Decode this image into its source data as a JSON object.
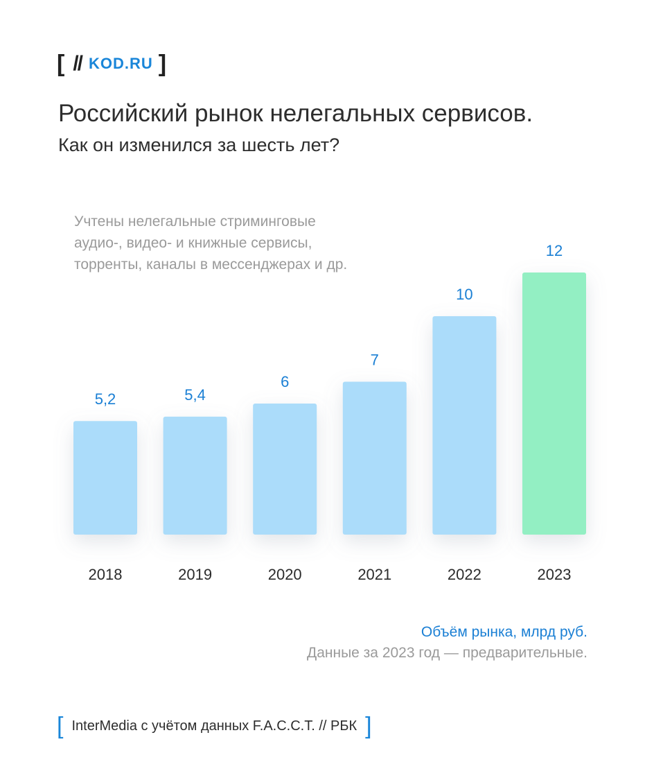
{
  "logo": {
    "bracket_left": "[",
    "slashes": "//",
    "brand": "KOD.RU",
    "bracket_right": "]"
  },
  "header": {
    "title": "Российский рынок нелегальных сервисов.",
    "subtitle": "Как он изменился за шесть лет?"
  },
  "note": {
    "lines": [
      "Учтены нелегальные стриминговые",
      "аудио-, видео- и книжные сервисы,",
      "торренты, каналы в мессенджерах и др."
    ]
  },
  "chart_data": {
    "type": "bar",
    "categories": [
      "2018",
      "2019",
      "2020",
      "2021",
      "2022",
      "2023"
    ],
    "values": [
      5.2,
      5.4,
      6,
      7,
      10,
      12
    ],
    "value_labels": [
      "5,2",
      "5,4",
      "6",
      "7",
      "10",
      "12"
    ],
    "ylim": [
      0,
      12
    ],
    "highlight_index": 5,
    "grid": false,
    "legend": "bottom-right",
    "colors": {
      "bar": "#abdcfa",
      "highlight": "#93efc3",
      "label": "#1a7fd4",
      "year": "#2b2b2b"
    }
  },
  "legend": {
    "unit": "Объём рынка, млрд руб.",
    "disclaimer": "Данные за 2023 год — предварительные."
  },
  "source": {
    "bracket_left": "[",
    "text": "InterMedia с учётом данных F.A.C.C.T. // РБК",
    "bracket_right": "]"
  }
}
